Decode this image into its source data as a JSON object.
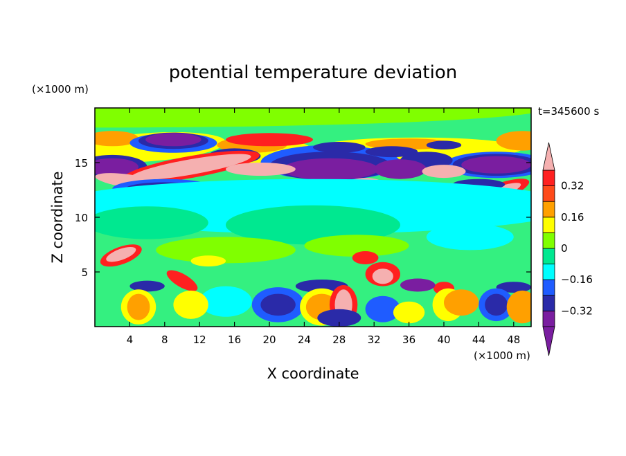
{
  "chart_data": {
    "type": "heatmap",
    "title": "potential temperature deviation",
    "xlabel": "X coordinate",
    "ylabel": "Z coordinate",
    "x_unit": "(×1000 m)",
    "y_unit": "(×1000 m)",
    "time_label": "t=345600 s",
    "xlim": [
      0,
      50
    ],
    "ylim": [
      0,
      20
    ],
    "x_ticks": [
      4,
      8,
      12,
      16,
      20,
      24,
      28,
      32,
      36,
      40,
      44,
      48
    ],
    "y_ticks": [
      5,
      10,
      15
    ],
    "colorbar": {
      "levels": [
        -0.4,
        -0.32,
        -0.24,
        -0.16,
        -0.08,
        0,
        0.08,
        0.16,
        0.24,
        0.32,
        0.4
      ],
      "labels": [
        "0.32",
        "0.16",
        "0",
        "−0.16",
        "−0.32"
      ],
      "label_values": [
        0.32,
        0.16,
        0,
        -0.16,
        -0.32
      ],
      "colors": [
        "#7a1ea0",
        "#2a2aa8",
        "#1f5cff",
        "#00ffff",
        "#00e890",
        "#80ff00",
        "#ffff00",
        "#ffa000",
        "#ff4a1a",
        "#ff2020",
        "#f5b0b0"
      ],
      "extend": "both",
      "lower_extension_color": "#7a1ea0",
      "upper_extension_color": "#f5b0b0"
    },
    "field_description_colors": {
      "background": "#34f080"
    }
  }
}
